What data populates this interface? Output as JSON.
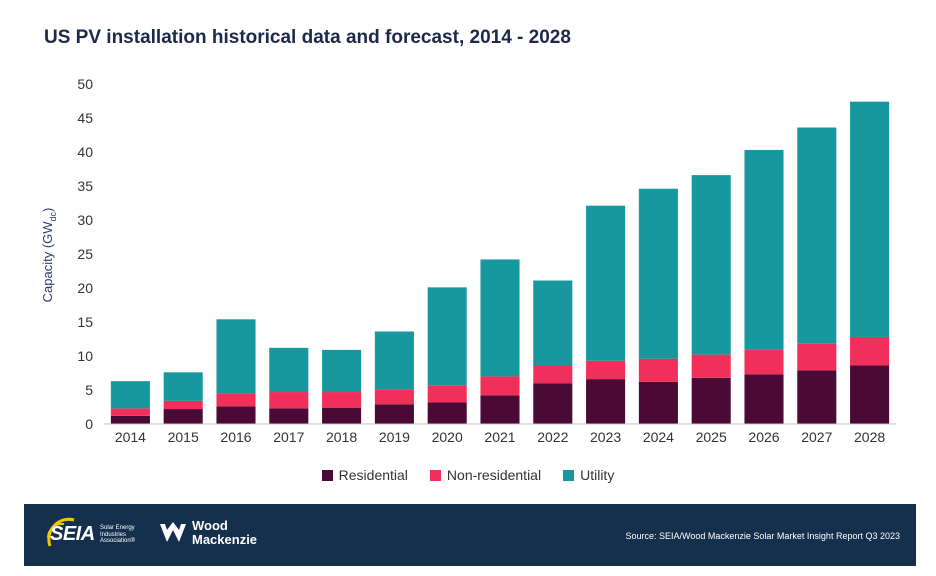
{
  "chart_data": {
    "type": "bar",
    "stacked": true,
    "title": "US PV installation historical data and forecast, 2014 - 2028",
    "ylabel": "Capacity (GW",
    "ylabel_sub": "dc",
    "ylabel_close": ")",
    "ylim": [
      0,
      50
    ],
    "yticks": [
      0,
      5,
      10,
      15,
      20,
      25,
      30,
      35,
      40,
      45,
      50
    ],
    "grid": false,
    "legend_position": "bottom",
    "categories": [
      "2014",
      "2015",
      "2016",
      "2017",
      "2018",
      "2019",
      "2020",
      "2021",
      "2022",
      "2023",
      "2024",
      "2025",
      "2026",
      "2027",
      "2028"
    ],
    "series": [
      {
        "name": "Residential",
        "color": "#4a0a35",
        "values": [
          1.2,
          2.2,
          2.6,
          2.3,
          2.4,
          2.9,
          3.2,
          4.2,
          6.0,
          6.6,
          6.2,
          6.8,
          7.3,
          7.9,
          8.6
        ]
      },
      {
        "name": "Non-residential",
        "color": "#f0305a",
        "values": [
          1.1,
          1.2,
          1.9,
          2.4,
          2.3,
          2.2,
          2.5,
          2.8,
          2.6,
          2.7,
          3.4,
          3.4,
          3.6,
          3.9,
          4.2
        ]
      },
      {
        "name": "Utility",
        "color": "#17989e",
        "values": [
          4.0,
          4.2,
          10.9,
          6.5,
          6.2,
          8.5,
          14.4,
          17.2,
          12.5,
          22.8,
          25.0,
          26.4,
          29.4,
          31.8,
          34.6
        ]
      }
    ]
  },
  "footer": {
    "seia_logo": "SEIA",
    "seia_sub": "Solar Energy Industries Association®",
    "wm_line1": "Wood",
    "wm_line2": "Mackenzie",
    "source": "Source: SEIA/Wood Mackenzie Solar Market Insight Report Q3 2023"
  }
}
